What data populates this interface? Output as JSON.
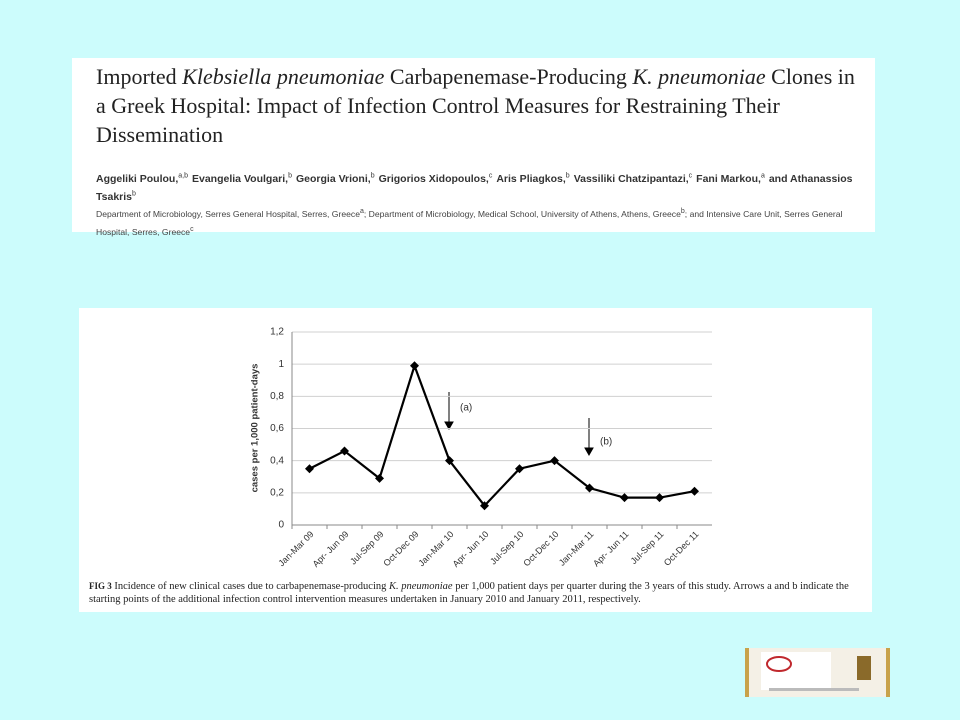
{
  "article": {
    "title": [
      "Imported ",
      "Klebsiella pneumoniae",
      " Carbapenemase-Producing ",
      "K. pneumoniae",
      " Clones in a Greek Hospital: Impact of Infection Control Measures for Restraining Their Dissemination"
    ],
    "authors": [
      {
        "name": "Aggeliki Poulou,",
        "aff": "a,b"
      },
      {
        "name": "Evangelia Voulgari,",
        "aff": "b"
      },
      {
        "name": "Georgia Vrioni,",
        "aff": "b"
      },
      {
        "name": "Grigorios Xidopoulos,",
        "aff": "c"
      },
      {
        "name": "Aris Pliagkos,",
        "aff": "b"
      },
      {
        "name": "Vassiliki Chatzipantazi,",
        "aff": "c"
      },
      {
        "name": "Fani Markou,",
        "aff": "a"
      },
      {
        "name": "and Athanassios Tsakris",
        "aff": "b"
      }
    ],
    "affiliations": [
      {
        "text": "Department of Microbiology, Serres General Hospital, Serres, Greece",
        "mark": "a"
      },
      {
        "text": "; Department of Microbiology, Medical School, University of Athens, Athens, Greece",
        "mark": "b"
      },
      {
        "text": "; and Intensive Care Unit, Serres General Hospital, Serres, Greece",
        "mark": "c"
      }
    ]
  },
  "chart_data": {
    "type": "line",
    "y_label": "cases per 1,000 patient-days",
    "categories": [
      "Jan-Mar 09",
      "Apr- Jun 09",
      "Jul-Sep 09",
      "Oct-Dec 09",
      "Jan-Mar 10",
      "Apr- Jun 10",
      "Jul-Sep 10",
      "Oct-Dec 10",
      "Jan-Mar 11",
      "Apr- Jun 11",
      "Jul-Sep 11",
      "Oct-Dec 11"
    ],
    "values": [
      0.35,
      0.46,
      0.29,
      0.99,
      0.4,
      0.12,
      0.35,
      0.4,
      0.23,
      0.17,
      0.17,
      0.21
    ],
    "color": "#000000",
    "ylim": [
      0,
      1.2
    ],
    "yticks": [
      0,
      {
        "value": 0.2,
        "label": "0,2"
      },
      {
        "value": 0.4,
        "label": "0,4"
      },
      {
        "value": 0.6,
        "label": "0,6"
      },
      {
        "value": 0.8,
        "label": "0,8"
      },
      1,
      {
        "value": 1.2,
        "label": "1,2"
      }
    ],
    "grid": true,
    "annotations": [
      "(a)",
      "(b)"
    ],
    "caption": [
      "FIG 3",
      " Incidence of new clinical cases due to carbapenemase-producing ",
      "K. pneumoniae",
      " per 1,000 patient days per quarter during the 3 years of this study. Arrows a and b indicate the starting points of the additional infection control intervention measures undertaken in January 2010 and January 2011, respectively."
    ]
  }
}
